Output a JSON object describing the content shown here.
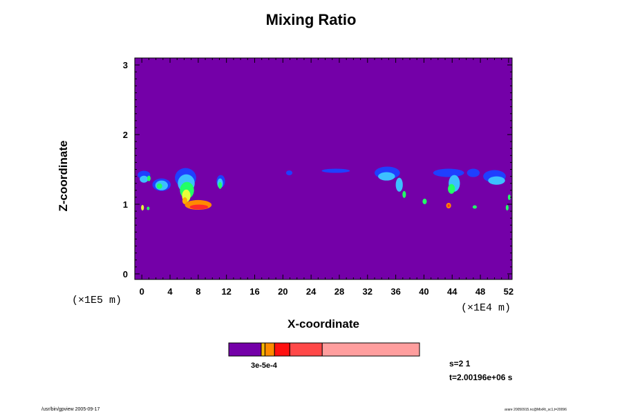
{
  "chart_data": {
    "type": "heatmap",
    "title": "Mixing Ratio",
    "xlabel": "X-coordinate",
    "ylabel": "Z-coordinate",
    "x_scale_label": "(×1E5 m)",
    "x_scale_label_right": "(×1E4 m)",
    "xlim": [
      -1,
      52.5
    ],
    "ylim": [
      -0.08,
      3.1
    ],
    "xticks": [
      "0",
      "4",
      "8",
      "12",
      "16",
      "20",
      "24",
      "28",
      "32",
      "36",
      "40",
      "44",
      "48",
      "52"
    ],
    "xtick_values": [
      0,
      4,
      8,
      12,
      16,
      20,
      24,
      28,
      32,
      36,
      40,
      44,
      48,
      52
    ],
    "yticks": [
      "0",
      "1",
      "2",
      "3"
    ],
    "ytick_values": [
      0,
      1,
      2,
      3
    ],
    "background_color": "#7400A8",
    "colorbar": {
      "label_text": "3e-5e-4",
      "segments": [
        {
          "color": "#7400A8",
          "frac": 0.17
        },
        {
          "color": "#F7B500",
          "frac": 0.02
        },
        {
          "color": "#FF8A00",
          "frac": 0.05
        },
        {
          "color": "#FF1010",
          "frac": 0.08
        },
        {
          "color": "#FF4848",
          "frac": 0.17
        },
        {
          "color": "#FF9E9E",
          "frac": 0.51
        }
      ]
    },
    "blobs": [
      {
        "x": 0.3,
        "z": 1.42,
        "rx": 0.9,
        "rz": 0.06,
        "color": "#1F3FFF"
      },
      {
        "x": 0.3,
        "z": 1.36,
        "rx": 0.6,
        "rz": 0.05,
        "color": "#3CC0FF"
      },
      {
        "x": 2.8,
        "z": 1.28,
        "rx": 1.3,
        "rz": 0.09,
        "color": "#1F3FFF"
      },
      {
        "x": 2.8,
        "z": 1.27,
        "rx": 0.9,
        "rz": 0.07,
        "color": "#3CC0FF"
      },
      {
        "x": 2.5,
        "z": 1.26,
        "rx": 0.4,
        "rz": 0.04,
        "color": "#22FF66"
      },
      {
        "x": 6.2,
        "z": 1.38,
        "rx": 1.5,
        "rz": 0.14,
        "color": "#1F3FFF"
      },
      {
        "x": 6.3,
        "z": 1.3,
        "rx": 1.2,
        "rz": 0.13,
        "color": "#3CC0FF"
      },
      {
        "x": 6.4,
        "z": 1.2,
        "rx": 1.0,
        "rz": 0.12,
        "color": "#22FF66"
      },
      {
        "x": 6.3,
        "z": 1.12,
        "rx": 0.6,
        "rz": 0.09,
        "color": "#E8FF3A"
      },
      {
        "x": 6.1,
        "z": 1.05,
        "rx": 0.35,
        "rz": 0.05,
        "color": "#FFB000"
      },
      {
        "x": 8.0,
        "z": 0.99,
        "rx": 1.9,
        "rz": 0.07,
        "color": "#FF8A00"
      },
      {
        "x": 8.1,
        "z": 0.96,
        "rx": 1.3,
        "rz": 0.035,
        "color": "#FF2A2A"
      },
      {
        "x": 11.2,
        "z": 1.33,
        "rx": 0.6,
        "rz": 0.09,
        "color": "#1F3FFF"
      },
      {
        "x": 11.1,
        "z": 1.3,
        "rx": 0.4,
        "rz": 0.07,
        "color": "#3CC0FF"
      },
      {
        "x": 11.1,
        "z": 1.27,
        "rx": 0.25,
        "rz": 0.05,
        "color": "#22FF66"
      },
      {
        "x": 20.9,
        "z": 1.45,
        "rx": 0.45,
        "rz": 0.035,
        "color": "#1F3FFF"
      },
      {
        "x": 27.5,
        "z": 1.48,
        "rx": 2.0,
        "rz": 0.03,
        "color": "#1F3FFF"
      },
      {
        "x": 34.8,
        "z": 1.45,
        "rx": 1.8,
        "rz": 0.09,
        "color": "#1F3FFF"
      },
      {
        "x": 34.7,
        "z": 1.4,
        "rx": 1.2,
        "rz": 0.06,
        "color": "#3CC0FF"
      },
      {
        "x": 36.5,
        "z": 1.28,
        "rx": 0.5,
        "rz": 0.1,
        "color": "#3CC0FF"
      },
      {
        "x": 37.2,
        "z": 1.14,
        "rx": 0.25,
        "rz": 0.05,
        "color": "#22FF66"
      },
      {
        "x": 40.1,
        "z": 1.04,
        "rx": 0.3,
        "rz": 0.04,
        "color": "#22FF66"
      },
      {
        "x": 43.5,
        "z": 1.45,
        "rx": 2.2,
        "rz": 0.06,
        "color": "#1F3FFF"
      },
      {
        "x": 44.3,
        "z": 1.3,
        "rx": 0.8,
        "rz": 0.12,
        "color": "#3CC0FF"
      },
      {
        "x": 43.9,
        "z": 1.22,
        "rx": 0.5,
        "rz": 0.07,
        "color": "#22FF66"
      },
      {
        "x": 43.5,
        "z": 0.98,
        "rx": 0.35,
        "rz": 0.04,
        "color": "#FF8A00"
      },
      {
        "x": 43.5,
        "z": 0.98,
        "rx": 0.15,
        "rz": 0.02,
        "color": "#FF2A2A"
      },
      {
        "x": 47.0,
        "z": 1.45,
        "rx": 0.9,
        "rz": 0.06,
        "color": "#1F3FFF"
      },
      {
        "x": 47.2,
        "z": 0.96,
        "rx": 0.3,
        "rz": 0.025,
        "color": "#22FF66"
      },
      {
        "x": 50.0,
        "z": 1.4,
        "rx": 1.6,
        "rz": 0.09,
        "color": "#1F3FFF"
      },
      {
        "x": 50.3,
        "z": 1.34,
        "rx": 1.2,
        "rz": 0.06,
        "color": "#3CC0FF"
      },
      {
        "x": 52.1,
        "z": 1.1,
        "rx": 0.2,
        "rz": 0.04,
        "color": "#22FF66"
      },
      {
        "x": 51.8,
        "z": 0.95,
        "rx": 0.2,
        "rz": 0.04,
        "color": "#22FF66"
      },
      {
        "x": 0.1,
        "z": 0.95,
        "rx": 0.2,
        "rz": 0.04,
        "color": "#E8FF3A"
      },
      {
        "x": 0.9,
        "z": 0.94,
        "rx": 0.2,
        "rz": 0.025,
        "color": "#22FF66"
      },
      {
        "x": 1.0,
        "z": 1.37,
        "rx": 0.25,
        "rz": 0.04,
        "color": "#22FF66"
      }
    ]
  },
  "info": {
    "s_text": "s=2 1",
    "t_text": "t=2.00196e+06 s"
  },
  "footer": {
    "left": "/usr/bin/gpview 2005-09-17",
    "right": "arare 20050915.nc@MixRt_sc1,t=20096"
  }
}
